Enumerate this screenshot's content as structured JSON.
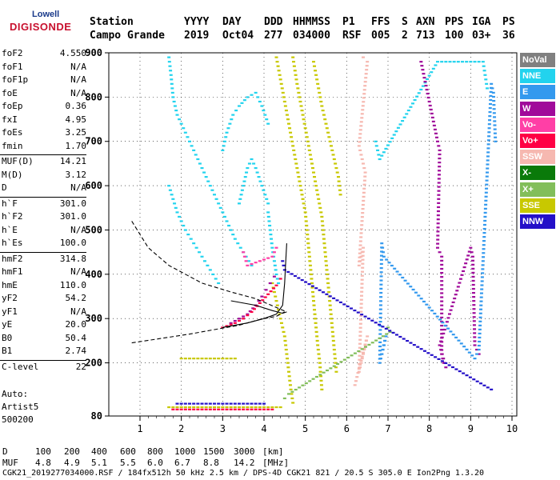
{
  "logo": {
    "line1": "Lowell",
    "line2": "DIGISONDE"
  },
  "header": {
    "row1": [
      "Station",
      "YYYY",
      "DAY",
      "DDD",
      "HHMMSS",
      "P1",
      "FFS",
      "S",
      "AXN",
      "PPS",
      "IGA",
      "PS"
    ],
    "row2": [
      "Campo Grande",
      "2019",
      "Oct04",
      "277",
      "034000",
      "RSF",
      "005",
      "2",
      "713",
      "100",
      "03+",
      "36"
    ]
  },
  "params": [
    {
      "name": "foF2",
      "value": "4.550"
    },
    {
      "name": "foF1",
      "value": "N/A"
    },
    {
      "name": "foF1p",
      "value": "N/A"
    },
    {
      "name": "foE",
      "value": "N/A"
    },
    {
      "name": "foEp",
      "value": "0.36"
    },
    {
      "name": "fxI",
      "value": "4.95"
    },
    {
      "name": "foEs",
      "value": "3.25"
    },
    {
      "name": "fmin",
      "value": "1.70"
    },
    {
      "name": "MUF(D)",
      "value": "14.21"
    },
    {
      "name": "M(D)",
      "value": "3.12"
    },
    {
      "name": "D",
      "value": "N/A"
    },
    {
      "name": "h`F",
      "value": "301.0"
    },
    {
      "name": "h`F2",
      "value": "301.0"
    },
    {
      "name": "h`E",
      "value": "N/A"
    },
    {
      "name": "h`Es",
      "value": "100.0"
    },
    {
      "name": "hmF2",
      "value": "314.8"
    },
    {
      "name": "hmF1",
      "value": "N/A"
    },
    {
      "name": "hmE",
      "value": "110.0"
    },
    {
      "name": "yF2",
      "value": "54.2"
    },
    {
      "name": "yF1",
      "value": "N/A"
    },
    {
      "name": "yE",
      "value": "20.0"
    },
    {
      "name": "B0",
      "value": "50.4"
    },
    {
      "name": "B1",
      "value": "2.74"
    },
    {
      "name": "C-level",
      "value": "22"
    }
  ],
  "autoscaling": {
    "line1": "Auto:",
    "line2": "Artist5",
    "line3": "500200"
  },
  "legend": [
    {
      "label": "NoVal",
      "color": "#808080",
      "text": "#ffffff"
    },
    {
      "label": "NNE",
      "color": "#22d3ee",
      "text": "#ffffff"
    },
    {
      "label": "E",
      "color": "#3399ee",
      "text": "#ffffff"
    },
    {
      "label": "W",
      "color": "#a00a9a",
      "text": "#ffffff"
    },
    {
      "label": "Vo-",
      "color": "#ff3fa6",
      "text": "#ffffff"
    },
    {
      "label": "Vo+",
      "color": "#ff0044",
      "text": "#ffffff"
    },
    {
      "label": "SSW",
      "color": "#f6b8b0",
      "text": "#ffffff"
    },
    {
      "label": "X-",
      "color": "#0a7a0a",
      "text": "#ffffff"
    },
    {
      "label": "X+",
      "color": "#82be5a",
      "text": "#ffffff"
    },
    {
      "label": "SSE",
      "color": "#c8c800",
      "text": "#ffffff"
    },
    {
      "label": "NNW",
      "color": "#2410c8",
      "text": "#ffffff"
    }
  ],
  "footer": {
    "d_label": "D",
    "d_values": [
      "100",
      "200",
      "400",
      "600",
      "800",
      "1000",
      "1500",
      "3000",
      "[km]"
    ],
    "muf_label": "MUF",
    "muf_values": [
      "4.8",
      "4.9",
      "5.1",
      "5.5",
      "6.0",
      "6.7",
      "8.8",
      "14.2",
      "[MHz]"
    ],
    "info": "CGK21_2019277034000.RSF / 184fx512h 50 kHz 2.5 km / DPS-4D CGK21 821 / 20.5 S 305.0 E Ion2Png 1.3.20"
  },
  "chart_data": {
    "type": "scatter",
    "xlim": [
      0.8,
      10
    ],
    "ylim": [
      80,
      900
    ],
    "x_ticks": [
      1,
      2,
      3,
      4,
      5,
      6,
      7,
      8,
      9,
      10
    ],
    "y_ticks": [
      80,
      200,
      300,
      400,
      500,
      600,
      700,
      800,
      900
    ],
    "grid": true,
    "legend_position": "right",
    "traces": [
      {
        "name": "NNE",
        "color": "#22d3ee",
        "points": [
          [
            1.7,
            890
          ],
          [
            1.75,
            850
          ],
          [
            1.8,
            800
          ],
          [
            1.9,
            760
          ],
          [
            2.1,
            720
          ],
          [
            2.3,
            680
          ],
          [
            2.5,
            640
          ],
          [
            2.7,
            600
          ],
          [
            2.9,
            560
          ],
          [
            3.1,
            520
          ],
          [
            3.3,
            480
          ],
          [
            3.5,
            450
          ],
          [
            3.7,
            420
          ]
        ]
      },
      {
        "name": "NNE",
        "color": "#22d3ee",
        "points": [
          [
            1.7,
            600
          ],
          [
            1.8,
            570
          ],
          [
            1.9,
            540
          ],
          [
            2.1,
            500
          ],
          [
            2.3,
            470
          ],
          [
            2.5,
            440
          ],
          [
            2.7,
            410
          ],
          [
            2.9,
            380
          ]
        ]
      },
      {
        "name": "NNE",
        "color": "#22d3ee",
        "points": [
          [
            3.0,
            680
          ],
          [
            3.1,
            720
          ],
          [
            3.25,
            760
          ],
          [
            3.4,
            780
          ],
          [
            3.6,
            800
          ],
          [
            3.8,
            810
          ],
          [
            3.95,
            780
          ],
          [
            4.1,
            740
          ]
        ]
      },
      {
        "name": "NNE",
        "color": "#22d3ee",
        "points": [
          [
            3.4,
            560
          ],
          [
            3.5,
            600
          ],
          [
            3.6,
            640
          ],
          [
            3.7,
            660
          ],
          [
            3.8,
            640
          ],
          [
            3.95,
            600
          ],
          [
            4.1,
            560
          ]
        ]
      },
      {
        "name": "NNE",
        "color": "#22d3ee",
        "points": [
          [
            4.1,
            540
          ],
          [
            4.15,
            500
          ],
          [
            4.2,
            460
          ],
          [
            4.25,
            430
          ],
          [
            4.3,
            400
          ],
          [
            4.35,
            380
          ]
        ]
      },
      {
        "name": "NNE",
        "color": "#22d3ee",
        "points": [
          [
            6.7,
            700
          ],
          [
            6.75,
            680
          ],
          [
            6.8,
            660
          ],
          [
            8.2,
            880
          ],
          [
            9.3,
            880
          ],
          [
            9.4,
            820
          ]
        ]
      },
      {
        "name": "SSE",
        "color": "#c8c800",
        "points": [
          [
            4.3,
            890
          ],
          [
            4.4,
            840
          ],
          [
            4.5,
            790
          ],
          [
            4.6,
            740
          ],
          [
            4.7,
            690
          ],
          [
            4.8,
            640
          ],
          [
            4.9,
            590
          ],
          [
            5.0,
            540
          ],
          [
            5.05,
            490
          ],
          [
            5.1,
            440
          ],
          [
            5.15,
            390
          ],
          [
            5.2,
            340
          ],
          [
            5.25,
            290
          ],
          [
            5.3,
            240
          ],
          [
            5.35,
            200
          ],
          [
            5.4,
            140
          ]
        ]
      },
      {
        "name": "SSE",
        "color": "#c8c800",
        "points": [
          [
            4.7,
            890
          ],
          [
            4.8,
            830
          ],
          [
            4.9,
            780
          ],
          [
            5.0,
            730
          ],
          [
            5.1,
            680
          ],
          [
            5.2,
            630
          ],
          [
            5.3,
            580
          ],
          [
            5.4,
            530
          ],
          [
            5.45,
            480
          ],
          [
            5.5,
            430
          ],
          [
            5.55,
            380
          ],
          [
            5.6,
            330
          ],
          [
            5.65,
            280
          ],
          [
            5.7,
            230
          ],
          [
            5.75,
            180
          ]
        ]
      },
      {
        "name": "SSE",
        "color": "#c8c800",
        "points": [
          [
            5.2,
            880
          ],
          [
            5.3,
            830
          ],
          [
            5.4,
            780
          ],
          [
            5.5,
            740
          ],
          [
            5.6,
            700
          ],
          [
            5.7,
            660
          ],
          [
            5.8,
            620
          ],
          [
            5.85,
            580
          ]
        ]
      },
      {
        "name": "SSE",
        "color": "#c8c800",
        "points": [
          [
            4.2,
            380
          ],
          [
            4.3,
            340
          ],
          [
            4.4,
            300
          ],
          [
            4.5,
            260
          ],
          [
            4.55,
            220
          ],
          [
            4.6,
            180
          ],
          [
            4.65,
            140
          ],
          [
            4.7,
            110
          ]
        ]
      },
      {
        "name": "W",
        "color": "#a00a9a",
        "points": [
          [
            3.2,
            290
          ],
          [
            3.4,
            300
          ],
          [
            3.6,
            310
          ],
          [
            3.8,
            330
          ],
          [
            3.95,
            350
          ],
          [
            4.05,
            365
          ],
          [
            4.15,
            380
          ],
          [
            4.25,
            395
          ]
        ]
      },
      {
        "name": "Vo+",
        "color": "#ff0044",
        "points": [
          [
            3.0,
            280
          ],
          [
            3.3,
            290
          ],
          [
            3.5,
            300
          ],
          [
            3.7,
            315
          ],
          [
            3.9,
            335
          ],
          [
            4.1,
            355
          ],
          [
            4.3,
            375
          ],
          [
            4.4,
            390
          ]
        ]
      },
      {
        "name": "SSW",
        "color": "#f6b8b0",
        "points": [
          [
            6.4,
            890
          ],
          [
            6.5,
            880
          ],
          [
            6.3,
            690
          ],
          [
            6.35,
            670
          ],
          [
            6.4,
            650
          ],
          [
            6.45,
            630
          ],
          [
            6.3,
            420
          ],
          [
            6.35,
            440
          ],
          [
            6.4,
            460
          ],
          [
            6.3,
            180
          ],
          [
            6.35,
            200
          ],
          [
            6.4,
            220
          ],
          [
            6.45,
            240
          ],
          [
            6.5,
            260
          ],
          [
            6.2,
            150
          ]
        ]
      },
      {
        "name": "W",
        "color": "#a00a9a",
        "points": [
          [
            7.8,
            880
          ],
          [
            8.2,
            700
          ],
          [
            8.25,
            680
          ],
          [
            8.2,
            460
          ],
          [
            8.3,
            440
          ],
          [
            8.3,
            220
          ],
          [
            8.35,
            200
          ],
          [
            8.4,
            190
          ],
          [
            8.25,
            240
          ],
          [
            9.0,
            460
          ],
          [
            9.05,
            440
          ],
          [
            9.1,
            240
          ],
          [
            9.2,
            220
          ]
        ]
      },
      {
        "name": "E",
        "color": "#3399ee",
        "points": [
          [
            6.85,
            220
          ],
          [
            6.9,
            240
          ],
          [
            6.95,
            260
          ],
          [
            6.8,
            200
          ],
          [
            6.85,
            470
          ],
          [
            6.9,
            440
          ],
          [
            9.1,
            210
          ],
          [
            9.2,
            230
          ],
          [
            9.5,
            830
          ],
          [
            9.55,
            810
          ],
          [
            9.6,
            700
          ]
        ]
      },
      {
        "name": "X+",
        "color": "#82be5a",
        "points": [
          [
            7.0,
            280
          ],
          [
            7.05,
            270
          ],
          [
            4.6,
            130
          ],
          [
            4.5,
            120
          ]
        ]
      },
      {
        "name": "NNW",
        "color": "#2410c8",
        "points": [
          [
            4.45,
            430
          ],
          [
            4.5,
            410
          ],
          [
            9.5,
            140
          ]
        ]
      },
      {
        "name": "Vo-",
        "color": "#ff3fa6",
        "points": [
          [
            3.5,
            450
          ],
          [
            3.6,
            420
          ],
          [
            4.2,
            440
          ],
          [
            4.3,
            460
          ]
        ]
      },
      {
        "name": "SSE",
        "color": "#c8c800",
        "points": [
          [
            2.0,
            210
          ],
          [
            2.3,
            210
          ],
          [
            2.6,
            210
          ],
          [
            3.0,
            210
          ],
          [
            3.3,
            210
          ]
        ]
      },
      {
        "name": "Es-band",
        "color": "#c8c800",
        "points": [
          [
            1.7,
            100
          ],
          [
            2.0,
            100
          ],
          [
            2.3,
            100
          ],
          [
            2.6,
            100
          ],
          [
            2.9,
            100
          ],
          [
            3.2,
            100
          ],
          [
            3.5,
            100
          ],
          [
            3.8,
            100
          ],
          [
            4.1,
            100
          ],
          [
            4.4,
            100
          ]
        ]
      },
      {
        "name": "Es-band-red",
        "color": "#ff0044",
        "points": [
          [
            1.8,
            95
          ],
          [
            2.1,
            95
          ],
          [
            2.4,
            95
          ],
          [
            2.7,
            95
          ],
          [
            3.0,
            95
          ],
          [
            3.3,
            95
          ],
          [
            3.6,
            95
          ],
          [
            3.9,
            95
          ],
          [
            4.2,
            95
          ]
        ]
      },
      {
        "name": "Es-band-nnw",
        "color": "#2410c8",
        "points": [
          [
            1.9,
            108
          ],
          [
            2.2,
            108
          ],
          [
            2.5,
            108
          ],
          [
            2.8,
            108
          ],
          [
            3.1,
            108
          ],
          [
            3.4,
            108
          ],
          [
            3.7,
            108
          ],
          [
            4.0,
            108
          ]
        ]
      }
    ],
    "profile_curves": [
      {
        "style": "dashed",
        "points": [
          [
            0.8,
            520
          ],
          [
            1.2,
            460
          ],
          [
            1.7,
            420
          ],
          [
            2.5,
            380
          ],
          [
            3.2,
            360
          ],
          [
            3.8,
            345
          ],
          [
            4.3,
            325
          ],
          [
            4.55,
            315
          ]
        ]
      },
      {
        "style": "dashed",
        "points": [
          [
            0.8,
            245
          ],
          [
            1.5,
            255
          ],
          [
            2.2,
            265
          ],
          [
            2.8,
            275
          ],
          [
            3.4,
            285
          ],
          [
            3.9,
            298
          ],
          [
            4.3,
            305
          ],
          [
            4.5,
            315
          ]
        ]
      },
      {
        "style": "solid",
        "points": [
          [
            3.0,
            280
          ],
          [
            3.6,
            290
          ],
          [
            4.0,
            300
          ],
          [
            4.3,
            310
          ],
          [
            4.45,
            330
          ],
          [
            4.5,
            380
          ],
          [
            4.52,
            420
          ],
          [
            4.55,
            470
          ]
        ]
      },
      {
        "style": "solid",
        "points": [
          [
            3.2,
            340
          ],
          [
            3.8,
            330
          ],
          [
            4.2,
            318
          ],
          [
            4.45,
            312
          ],
          [
            4.55,
            315
          ]
        ]
      }
    ]
  }
}
